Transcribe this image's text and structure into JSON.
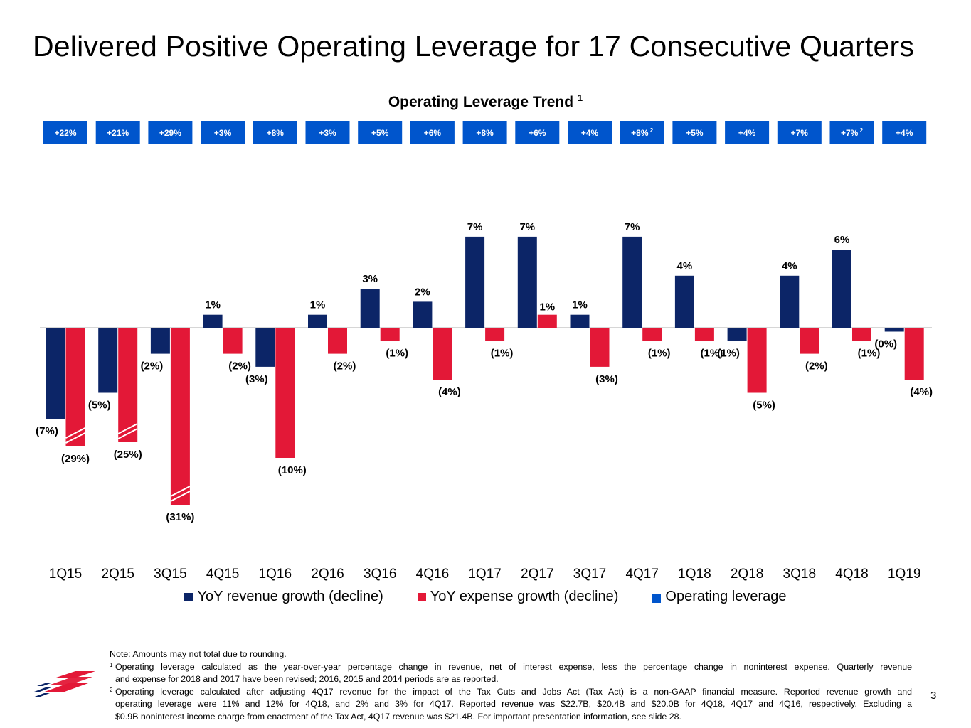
{
  "page": {
    "title": "Delivered Positive Operating Leverage for 17 Consecutive Quarters",
    "subtitle": "Operating Leverage Trend",
    "subtitle_footnote": "1",
    "page_number": "3"
  },
  "colors": {
    "revenue": "#0c2567",
    "expense": "#e31837",
    "operating_leverage": "#0055cc"
  },
  "chart_data": {
    "type": "bar",
    "title": "Operating Leverage Trend",
    "categories": [
      "1Q15",
      "2Q15",
      "3Q15",
      "4Q15",
      "1Q16",
      "2Q16",
      "3Q16",
      "4Q16",
      "1Q17",
      "2Q17",
      "3Q17",
      "4Q17",
      "1Q18",
      "2Q18",
      "3Q18",
      "4Q18",
      "1Q19"
    ],
    "series": [
      {
        "name": "YoY revenue growth (decline)",
        "values": [
          -7,
          -5,
          -2,
          1,
          -3,
          1,
          3,
          2,
          7,
          7,
          1,
          7,
          4,
          -1,
          4,
          6,
          -0.3
        ],
        "labels": [
          "(7%)",
          "(5%)",
          "(2%)",
          "1%",
          "(3%)",
          "1%",
          "3%",
          "2%",
          "7%",
          "7%",
          "1%",
          "7%",
          "4%",
          "(1%)",
          "4%",
          "6%",
          "(0%)"
        ]
      },
      {
        "name": "YoY expense growth (decline)",
        "values": [
          -29,
          -25,
          -31,
          -2,
          -10,
          -2,
          -1,
          -4,
          -1,
          1,
          -3,
          -1,
          -1,
          -5,
          -2,
          -1,
          -4
        ],
        "labels": [
          "(29%)",
          "(25%)",
          "(31%)",
          "(2%)",
          "(10%)",
          "(2%)",
          "(1%)",
          "(4%)",
          "(1%)",
          "1%",
          "(3%)",
          "(1%)",
          "(1%)",
          "(5%)",
          "(2%)",
          "(1%)",
          "(4%)"
        ]
      }
    ],
    "operating_leverage": {
      "name": "Operating leverage",
      "values": [
        "+22%",
        "+21%",
        "+29%",
        "+3%",
        "+8%",
        "+3%",
        "+5%",
        "+6%",
        "+8%",
        "+6%",
        "+4%",
        "+8%",
        "+5%",
        "+4%",
        "+7%",
        "+7%",
        "+4%"
      ],
      "footnote_marks": [
        "",
        "",
        "",
        "",
        "",
        "",
        "",
        "",
        "",
        "",
        "",
        "2",
        "",
        "",
        "",
        "2",
        ""
      ]
    },
    "axis_break": [
      "1Q15 expense",
      "2Q15 expense",
      "3Q15 expense"
    ],
    "legend_position": "bottom",
    "grid": false
  },
  "notes": {
    "note": "Note: Amounts may not total due to rounding.",
    "fn1_mark": "1",
    "fn1_line1": "Operating leverage calculated as the year-over-year percentage change in revenue, net of interest expense, less the percentage change in noninterest expense. Quarterly revenue",
    "fn1_line2": "and expense for 2018 and 2017 have been revised; 2016, 2015 and 2014 periods are as reported.",
    "fn2_mark": "2",
    "fn2_line1": "Operating leverage calculated after adjusting 4Q17 revenue for the impact of the Tax Cuts and Jobs Act (Tax Act) is a non-GAAP financial measure. Reported revenue growth and",
    "fn2_line2": "operating leverage were 11% and 12% for 4Q18, and 2% and 3% for 4Q17. Reported revenue was $22.7B, $20.4B and $20.0B for 4Q18, 4Q17 and 4Q16, respectively. Excluding a",
    "fn2_line3": "$0.9B noninterest income charge from enactment of the Tax Act, 4Q17 revenue was $21.4B. For important presentation information, see slide 28."
  }
}
